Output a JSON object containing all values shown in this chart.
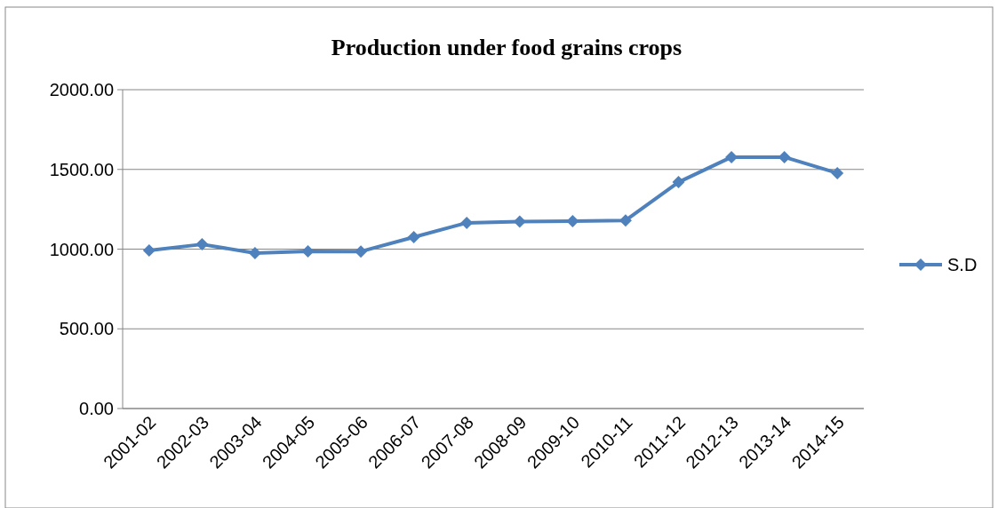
{
  "chart_data": {
    "type": "line",
    "title": "Production under food grains crops",
    "categories": [
      "2001-02",
      "2002-03",
      "2003-04",
      "2004-05",
      "2005-06",
      "2006-07",
      "2007-08",
      "2008-09",
      "2009-10",
      "2010-11",
      "2011-12",
      "2012-13",
      "2013-14",
      "2014-15"
    ],
    "series": [
      {
        "name": "S.D",
        "color": "#4f81bd",
        "values": [
          992,
          1030,
          975,
          986,
          985,
          1075,
          1165,
          1173,
          1175,
          1180,
          1420,
          1577,
          1577,
          1477
        ]
      }
    ],
    "ylim": [
      0,
      2000
    ],
    "yticks": [
      {
        "value": 0,
        "label": "0.00"
      },
      {
        "value": 500,
        "label": "500.00"
      },
      {
        "value": 1000,
        "label": "1000.00"
      },
      {
        "value": 1500,
        "label": "1500.00"
      },
      {
        "value": 2000,
        "label": "2000.00"
      }
    ],
    "grid": "y",
    "legend": "right",
    "marker": "diamond",
    "line_style": "solid"
  }
}
